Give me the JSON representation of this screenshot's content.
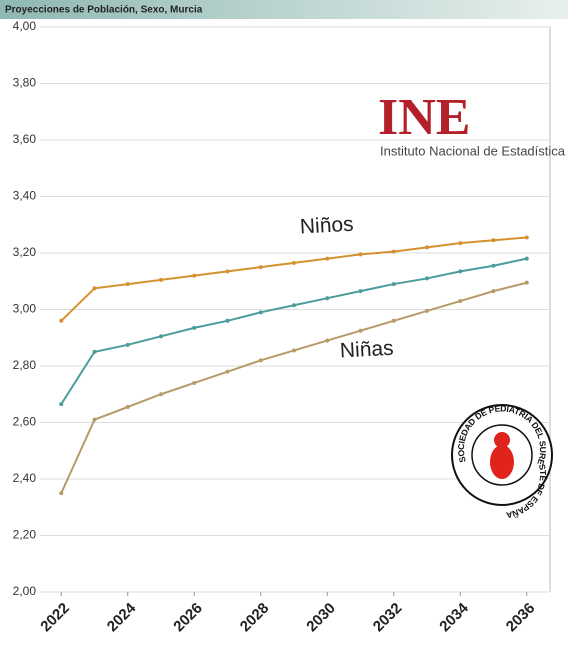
{
  "chart_data": {
    "type": "line",
    "title": "Proyecciones de Población, Sexo, Murcia",
    "x": [
      2022,
      2023,
      2024,
      2025,
      2026,
      2027,
      2028,
      2029,
      2030,
      2031,
      2032,
      2033,
      2034,
      2035,
      2036
    ],
    "xlim": [
      2021,
      2037
    ],
    "xticks": [
      2022,
      2024,
      2026,
      2028,
      2030,
      2032,
      2034,
      2036
    ],
    "ylim": [
      2,
      4
    ],
    "yticks": [
      {
        "value": 2,
        "label": "2,00"
      },
      {
        "value": 2.2,
        "label": "2,20"
      },
      {
        "value": 2.4,
        "label": "2,40"
      },
      {
        "value": 2.6,
        "label": "2,60"
      },
      {
        "value": 2.8,
        "label": "2,80"
      },
      {
        "value": 3,
        "label": "3,00"
      },
      {
        "value": 3.2,
        "label": "3,20"
      },
      {
        "value": 3.4,
        "label": "3,40"
      },
      {
        "value": 3.6,
        "label": "3,60"
      },
      {
        "value": 3.8,
        "label": "3,80"
      },
      {
        "value": 4,
        "label": "4,00"
      }
    ],
    "grid": true,
    "series": [
      {
        "name": "Niños",
        "color": "#d4922e",
        "values": [
          2.96,
          3.075,
          3.09,
          3.105,
          3.12,
          3.135,
          3.15,
          3.165,
          3.18,
          3.195,
          3.205,
          3.22,
          3.235,
          3.245,
          3.255
        ]
      },
      {
        "color": "#4c9c9c",
        "values": [
          2.665,
          2.85,
          2.875,
          2.905,
          2.935,
          2.96,
          2.99,
          3.015,
          3.04,
          3.065,
          3.09,
          3.11,
          3.135,
          3.155,
          3.18
        ]
      },
      {
        "name": "Niñas",
        "color": "#b89a68",
        "values": [
          2.35,
          2.61,
          2.655,
          2.7,
          2.74,
          2.78,
          2.82,
          2.855,
          2.89,
          2.925,
          2.96,
          2.995,
          3.03,
          3.065,
          3.095
        ]
      }
    ],
    "logos": {
      "ine": "INE",
      "ine_name": "Instituto Nacional de Estadística",
      "society": "SOCIEDAD DE PEDIATRIA DEL SURESTE DE ESPAÑA"
    }
  }
}
